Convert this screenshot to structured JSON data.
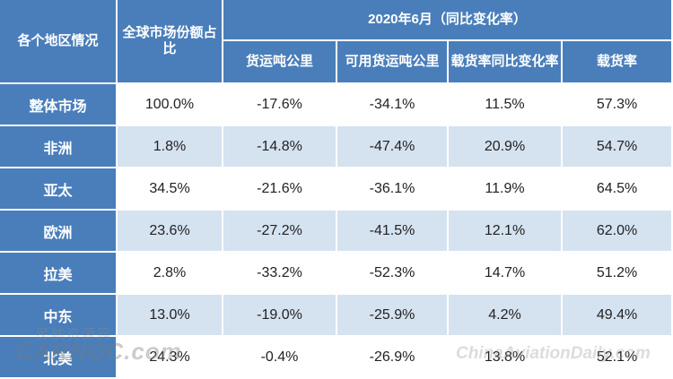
{
  "table": {
    "header": {
      "region_label": "各个地区情况",
      "share_label": "全球市场份额占比",
      "period_label": "2020年6月（同比变化率）",
      "columns": [
        "货运吨公里",
        "可用货运吨公里",
        "载货率同比变化率",
        "载货率"
      ]
    },
    "rows": [
      {
        "region": "整体市场",
        "share": "100.0%",
        "ctk": "-17.6%",
        "actk": "-34.1%",
        "lf_change": "11.5%",
        "lf": "57.3%"
      },
      {
        "region": "非洲",
        "share": "1.8%",
        "ctk": "-14.8%",
        "actk": "-47.4%",
        "lf_change": "20.9%",
        "lf": "54.7%"
      },
      {
        "region": "亚太",
        "share": "34.5%",
        "ctk": "-21.6%",
        "actk": "-36.1%",
        "lf_change": "11.9%",
        "lf": "64.5%"
      },
      {
        "region": "欧洲",
        "share": "23.6%",
        "ctk": "-27.2%",
        "actk": "-41.5%",
        "lf_change": "12.1%",
        "lf": "62.0%"
      },
      {
        "region": "拉美",
        "share": "2.8%",
        "ctk": "-33.2%",
        "actk": "-52.3%",
        "lf_change": "14.7%",
        "lf": "51.2%"
      },
      {
        "region": "中东",
        "share": "13.0%",
        "ctk": "-19.0%",
        "actk": "-25.9%",
        "lf_change": "4.2%",
        "lf": "49.4%"
      },
      {
        "region": "北美",
        "share": "24.3%",
        "ctk": "-0.4%",
        "actk": "-26.9%",
        "lf_change": "13.8%",
        "lf": "52.1%"
      }
    ]
  },
  "colors": {
    "header_bg": "#4a7ebb",
    "alt_row_bg": "#d5e2f0"
  },
  "watermarks": {
    "left_cn": "民航资源网",
    "left": "CARNOC.com",
    "right": "ChinaAviationDaily.com"
  }
}
